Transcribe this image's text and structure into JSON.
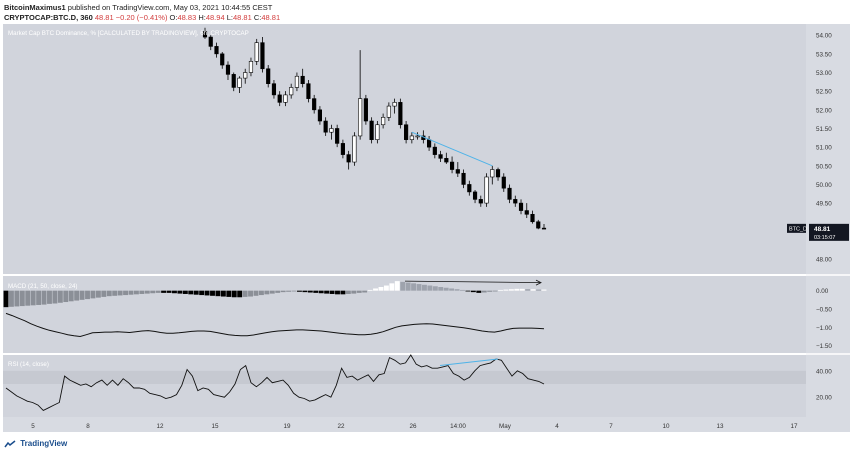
{
  "header": {
    "author": "BitcoinMaximus1",
    "published_text": "published on TradingView.com, May 03, 2021 10:44:55 CEST",
    "symbol": "CRYPTOCAP:BTC.D, 360",
    "ohlc_parts": {
      "last": "48.81",
      "change": "−0.20 (−0.41%)",
      "o_label": "O:",
      "o": "48.83",
      "h_label": "H:",
      "h": "48.94",
      "l_label": "L:",
      "l": "48.81",
      "c_label": "C:",
      "c": "48.81"
    }
  },
  "footer": {
    "brand": "TradingView"
  },
  "colors": {
    "background": "#d1d4dc",
    "candle_up": "#ffffff",
    "candle_down": "#000000",
    "trendline": "#4fb3e8",
    "price_badge": "#131722"
  },
  "chart_data": [
    {
      "type": "candlestick",
      "title": "Market Cap BTC Dominance, % [CALCULATED BY TRADINGVIEW], 6h, CRYPTOCAP",
      "symbol_badge": "BTC_D",
      "last_price": "48.81",
      "countdown": "03:15:07",
      "y_ticks": [
        "54.00",
        "53.50",
        "53.00",
        "52.50",
        "52.00",
        "51.50",
        "51.00",
        "50.50",
        "50.00",
        "49.50",
        "48.81",
        "48.00"
      ],
      "ylim": [
        47.6,
        54.3
      ],
      "x_ticks": [
        "5",
        "8",
        "12",
        "15",
        "19",
        "22",
        "26",
        "14:00",
        "May",
        "4",
        "7",
        "10",
        "13",
        "17"
      ],
      "ohlc": [
        [
          54.1,
          54.2,
          53.9,
          53.95
        ],
        [
          53.95,
          54.0,
          53.6,
          53.7
        ],
        [
          53.7,
          53.8,
          53.4,
          53.5
        ],
        [
          53.5,
          53.55,
          53.1,
          53.2
        ],
        [
          53.2,
          53.3,
          52.8,
          52.95
        ],
        [
          52.95,
          53.0,
          52.5,
          52.6
        ],
        [
          52.6,
          52.9,
          52.45,
          52.85
        ],
        [
          52.85,
          53.1,
          52.7,
          53.0
        ],
        [
          53.0,
          53.4,
          52.9,
          53.3
        ],
        [
          53.3,
          53.9,
          53.2,
          53.8
        ],
        [
          53.8,
          53.95,
          53.0,
          53.1
        ],
        [
          53.1,
          53.2,
          52.6,
          52.7
        ],
        [
          52.7,
          52.8,
          52.3,
          52.4
        ],
        [
          52.4,
          52.5,
          52.1,
          52.2
        ],
        [
          52.2,
          52.5,
          52.1,
          52.4
        ],
        [
          52.4,
          52.7,
          52.3,
          52.6
        ],
        [
          52.6,
          53.0,
          52.5,
          52.9
        ],
        [
          52.9,
          53.1,
          52.6,
          52.7
        ],
        [
          52.7,
          52.8,
          52.2,
          52.3
        ],
        [
          52.3,
          52.4,
          51.9,
          52.0
        ],
        [
          52.0,
          52.1,
          51.6,
          51.7
        ],
        [
          51.7,
          51.8,
          51.3,
          51.4
        ],
        [
          51.4,
          51.6,
          51.2,
          51.5
        ],
        [
          51.5,
          51.6,
          51.0,
          51.1
        ],
        [
          51.1,
          51.2,
          50.7,
          50.8
        ],
        [
          50.8,
          50.9,
          50.4,
          50.6
        ],
        [
          50.6,
          51.4,
          50.5,
          51.3
        ],
        [
          51.3,
          53.6,
          51.2,
          52.3
        ],
        [
          52.3,
          52.4,
          51.6,
          51.7
        ],
        [
          51.7,
          51.8,
          51.1,
          51.2
        ],
        [
          51.2,
          51.7,
          51.1,
          51.6
        ],
        [
          51.6,
          51.9,
          51.5,
          51.8
        ],
        [
          51.8,
          52.2,
          51.7,
          52.1
        ],
        [
          52.1,
          52.3,
          51.9,
          52.2
        ],
        [
          52.2,
          52.3,
          51.5,
          51.6
        ],
        [
          51.6,
          51.7,
          51.1,
          51.2
        ],
        [
          51.2,
          51.4,
          51.1,
          51.3
        ],
        [
          51.3,
          51.4,
          51.2,
          51.3
        ],
        [
          51.3,
          51.45,
          51.1,
          51.2
        ],
        [
          51.2,
          51.3,
          50.9,
          51.0
        ],
        [
          51.0,
          51.1,
          50.7,
          50.8
        ],
        [
          50.8,
          50.9,
          50.6,
          50.7
        ],
        [
          50.7,
          50.85,
          50.55,
          50.6
        ],
        [
          50.6,
          50.75,
          50.3,
          50.4
        ],
        [
          50.4,
          50.6,
          50.2,
          50.3
        ],
        [
          50.3,
          50.4,
          49.9,
          50.0
        ],
        [
          50.0,
          50.1,
          49.7,
          49.8
        ],
        [
          49.8,
          49.85,
          49.5,
          49.6
        ],
        [
          49.6,
          49.7,
          49.4,
          49.5
        ],
        [
          49.5,
          50.3,
          49.4,
          50.2
        ],
        [
          50.2,
          50.5,
          50.0,
          50.4
        ],
        [
          50.4,
          50.45,
          50.1,
          50.2
        ],
        [
          50.2,
          50.3,
          49.8,
          49.9
        ],
        [
          49.9,
          50.0,
          49.5,
          49.6
        ],
        [
          49.6,
          49.7,
          49.4,
          49.5
        ],
        [
          49.5,
          49.6,
          49.2,
          49.3
        ],
        [
          49.3,
          49.5,
          49.1,
          49.2
        ],
        [
          49.2,
          49.3,
          48.95,
          49.0
        ],
        [
          49.0,
          49.05,
          48.8,
          48.83
        ],
        [
          48.83,
          48.94,
          48.81,
          48.81
        ]
      ],
      "trendline": [
        [
          49.1,
          1.0
        ],
        [
          50.5,
          0.9
        ]
      ]
    },
    {
      "type": "histogram+line",
      "title": "MACD (21, 50, close, 24)",
      "y_ticks": [
        "0.00",
        "−0.50",
        "−1.00",
        "−1.50"
      ],
      "ylim": [
        -1.7,
        0.4
      ],
      "histogram": [
        -0.45,
        -0.44,
        -0.43,
        -0.42,
        -0.41,
        -0.4,
        -0.39,
        -0.38,
        -0.36,
        -0.35,
        -0.33,
        -0.31,
        -0.29,
        -0.27,
        -0.25,
        -0.23,
        -0.21,
        -0.19,
        -0.17,
        -0.15,
        -0.14,
        -0.13,
        -0.12,
        -0.11,
        -0.1,
        -0.09,
        -0.08,
        -0.07,
        -0.06,
        -0.06,
        -0.06,
        -0.07,
        -0.08,
        -0.09,
        -0.1,
        -0.11,
        -0.12,
        -0.13,
        -0.14,
        -0.15,
        -0.16,
        -0.17,
        -0.18,
        -0.18,
        -0.17,
        -0.16,
        -0.14,
        -0.12,
        -0.1,
        -0.08,
        -0.06,
        -0.04,
        -0.03,
        -0.02,
        -0.03,
        -0.04,
        -0.05,
        -0.06,
        -0.07,
        -0.08,
        -0.09,
        -0.1,
        -0.1,
        -0.09,
        -0.08,
        -0.06,
        -0.05,
        0.02,
        0.06,
        0.1,
        0.14,
        0.2,
        0.26,
        0.24,
        0.22,
        0.2,
        0.18,
        0.16,
        0.14,
        0.12,
        0.1,
        0.08,
        0.06,
        0.04,
        0.02,
        -0.02,
        -0.04,
        -0.06,
        -0.05,
        -0.03,
        -0.01,
        0.02,
        0.03,
        0.04,
        0.05,
        0.05,
        0.04,
        0.04,
        0.03,
        0.03
      ],
      "line": [
        -0.62,
        -0.68,
        -0.75,
        -0.82,
        -0.9,
        -0.97,
        -1.03,
        -1.08,
        -1.12,
        -1.16,
        -1.2,
        -1.23,
        -1.25,
        -1.2,
        -1.15,
        -1.14,
        -1.13,
        -1.13,
        -1.12,
        -1.13,
        -1.14,
        -1.12,
        -1.1,
        -1.09,
        -1.11,
        -1.14,
        -1.16,
        -1.16,
        -1.15,
        -1.13,
        -1.11,
        -1.1,
        -1.1,
        -1.11,
        -1.14,
        -1.17,
        -1.2,
        -1.22,
        -1.23,
        -1.23,
        -1.21,
        -1.18,
        -1.15,
        -1.12,
        -1.1,
        -1.09,
        -1.08,
        -1.07,
        -1.07,
        -1.08,
        -1.09,
        -1.1,
        -1.12,
        -1.14,
        -1.16,
        -1.18,
        -1.19,
        -1.2,
        -1.2,
        -1.19,
        -1.16,
        -1.12,
        -1.06,
        -1.0,
        -0.96,
        -0.94,
        -0.92,
        -0.91,
        -0.9,
        -0.91,
        -0.93,
        -0.95,
        -0.97,
        -0.99,
        -1.01,
        -1.04,
        -1.07,
        -1.1,
        -1.12,
        -1.13,
        -1.1,
        -1.06,
        -1.03,
        -1.02,
        -1.02,
        -1.02,
        -1.03,
        -1.04
      ],
      "trendline": [
        [
          0.26,
          0.0
        ],
        [
          0.22,
          1.0
        ]
      ]
    },
    {
      "type": "line",
      "title": "RSI (14, close)",
      "y_ticks": [
        "40.00",
        "20.00"
      ],
      "ylim": [
        5,
        52
      ],
      "band": [
        30,
        40
      ],
      "values": [
        27,
        24,
        21,
        19,
        17,
        16,
        14,
        10,
        12,
        14,
        16,
        36,
        33,
        31,
        29,
        30,
        28,
        31,
        33,
        29,
        33,
        29,
        34,
        31,
        27,
        27,
        26,
        23,
        22,
        21,
        19,
        20,
        22,
        29,
        41,
        36,
        25,
        27,
        26,
        22,
        21,
        20,
        24,
        30,
        41,
        44,
        31,
        28,
        31,
        35,
        31,
        32,
        33,
        29,
        23,
        20,
        19,
        17,
        18,
        20,
        22,
        20,
        29,
        42,
        35,
        36,
        33,
        35,
        37,
        32,
        37,
        38,
        50,
        48,
        45,
        46,
        52,
        45,
        43,
        44,
        42,
        42,
        43,
        44,
        38,
        36,
        33,
        35,
        40,
        44,
        45,
        46,
        49,
        48,
        42,
        36,
        40,
        38,
        34,
        33,
        32,
        30
      ],
      "trendline": [
        [
          0.0,
          0.0
        ],
        [
          0.0,
          1.0
        ]
      ]
    }
  ]
}
